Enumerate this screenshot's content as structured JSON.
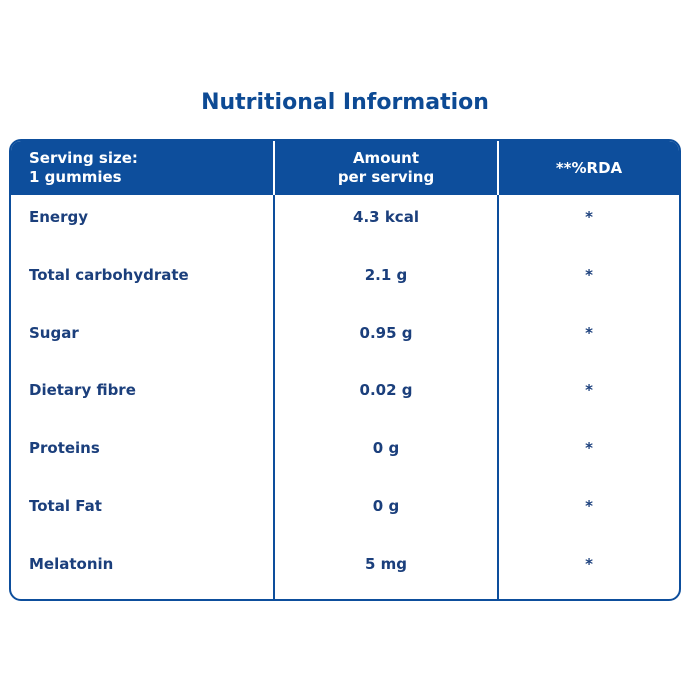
{
  "title": "Nutritional Information",
  "table": {
    "header": [
      [
        "Serving size:",
        "1 gummies"
      ],
      [
        "Amount",
        "per serving"
      ],
      [
        "**%RDA"
      ]
    ],
    "rows": [
      [
        "Energy",
        "4.3 kcal",
        "*"
      ],
      [
        "Total carbohydrate",
        "2.1 g",
        "*"
      ],
      [
        "Sugar",
        "0.95 g",
        "*"
      ],
      [
        "Dietary fibre",
        "0.02 g",
        "*"
      ],
      [
        "Proteins",
        "0 g",
        "*"
      ],
      [
        "Total Fat",
        "0 g",
        "*"
      ],
      [
        "Melatonin",
        "5 mg",
        "*"
      ]
    ]
  }
}
